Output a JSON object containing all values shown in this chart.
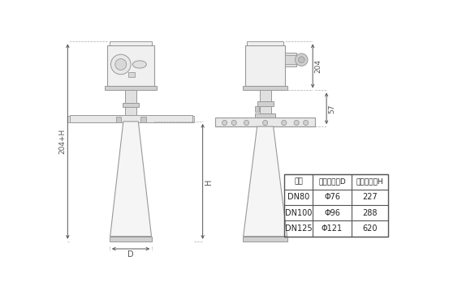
{
  "bg_color": "#ffffff",
  "lc": "#999999",
  "dc": "#555555",
  "table_headers": [
    "法兰",
    "喇叭口直径D",
    "喇叭口高度H"
  ],
  "table_rows": [
    [
      "DN80",
      "Φ76",
      "227"
    ],
    [
      "DN100",
      "Φ96",
      "288"
    ],
    [
      "DN125",
      "Φ121",
      "620"
    ]
  ],
  "dim_204": "204",
  "dim_57": "57",
  "dim_H": "H",
  "dim_204H": "204+H",
  "dim_D": "D"
}
